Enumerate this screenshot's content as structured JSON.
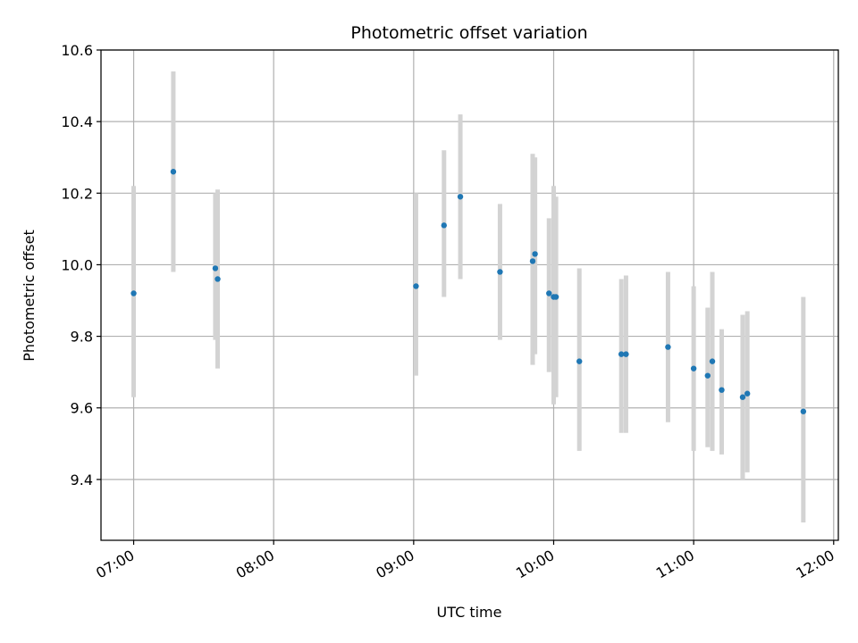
{
  "chart_data": {
    "type": "scatter",
    "title": "Photometric offset variation",
    "xlabel": "UTC time",
    "ylabel": "Photometric offset",
    "x_axis": {
      "kind": "time",
      "min": "06:46",
      "max": "12:02",
      "ticks": [
        "07:00",
        "08:00",
        "09:00",
        "10:00",
        "11:00",
        "12:00"
      ]
    },
    "y_axis": {
      "min": 9.23,
      "max": 10.6,
      "ticks": [
        "9.4",
        "9.6",
        "9.8",
        "10.0",
        "10.2",
        "10.4",
        "10.6"
      ]
    },
    "grid": true,
    "colors": {
      "point": "#1f77b4",
      "errorbar": "#d3d3d3",
      "grid": "#b0b0b0"
    },
    "points": [
      {
        "time": "07:00",
        "y": 9.92,
        "ylow": 9.63,
        "yhigh": 10.22
      },
      {
        "time": "07:17",
        "y": 10.26,
        "ylow": 9.98,
        "yhigh": 10.54
      },
      {
        "time": "07:35",
        "y": 9.99,
        "ylow": 9.79,
        "yhigh": 10.2
      },
      {
        "time": "07:36",
        "y": 9.96,
        "ylow": 9.71,
        "yhigh": 10.21
      },
      {
        "time": "09:01",
        "y": 9.94,
        "ylow": 9.69,
        "yhigh": 10.2
      },
      {
        "time": "09:13",
        "y": 10.11,
        "ylow": 9.91,
        "yhigh": 10.32
      },
      {
        "time": "09:20",
        "y": 10.19,
        "ylow": 9.96,
        "yhigh": 10.42
      },
      {
        "time": "09:37",
        "y": 9.98,
        "ylow": 9.79,
        "yhigh": 10.17
      },
      {
        "time": "09:51",
        "y": 10.01,
        "ylow": 9.72,
        "yhigh": 10.31
      },
      {
        "time": "09:52",
        "y": 10.03,
        "ylow": 9.75,
        "yhigh": 10.3
      },
      {
        "time": "09:58",
        "y": 9.92,
        "ylow": 9.7,
        "yhigh": 10.13
      },
      {
        "time": "10:00",
        "y": 9.91,
        "ylow": 9.61,
        "yhigh": 10.22
      },
      {
        "time": "10:01",
        "y": 9.91,
        "ylow": 9.63,
        "yhigh": 10.19
      },
      {
        "time": "10:11",
        "y": 9.73,
        "ylow": 9.48,
        "yhigh": 9.99
      },
      {
        "time": "10:29",
        "y": 9.75,
        "ylow": 9.53,
        "yhigh": 9.96
      },
      {
        "time": "10:31",
        "y": 9.75,
        "ylow": 9.53,
        "yhigh": 9.97
      },
      {
        "time": "10:49",
        "y": 9.77,
        "ylow": 9.56,
        "yhigh": 9.98
      },
      {
        "time": "11:00",
        "y": 9.71,
        "ylow": 9.48,
        "yhigh": 9.94
      },
      {
        "time": "11:06",
        "y": 9.69,
        "ylow": 9.49,
        "yhigh": 9.88
      },
      {
        "time": "11:08",
        "y": 9.73,
        "ylow": 9.48,
        "yhigh": 9.98
      },
      {
        "time": "11:12",
        "y": 9.65,
        "ylow": 9.47,
        "yhigh": 9.82
      },
      {
        "time": "11:21",
        "y": 9.63,
        "ylow": 9.4,
        "yhigh": 9.86
      },
      {
        "time": "11:23",
        "y": 9.64,
        "ylow": 9.42,
        "yhigh": 9.87
      },
      {
        "time": "11:47",
        "y": 9.59,
        "ylow": 9.28,
        "yhigh": 9.91
      }
    ]
  }
}
